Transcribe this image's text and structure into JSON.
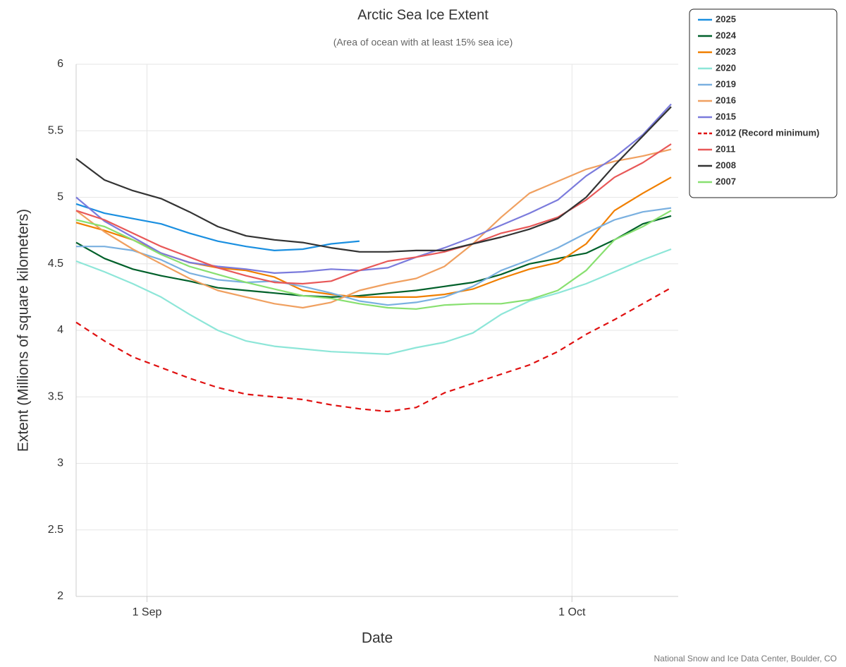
{
  "chart_data": {
    "type": "line",
    "title": "Arctic Sea Ice Extent",
    "subtitle": "(Area of ocean with at least 15% sea ice)",
    "x_label": "Date",
    "y_label": "Extent (Millions of square kilometers)",
    "credit": "National Snow and Ice Data Center, Boulder, CO",
    "x": [
      -5,
      -3,
      -1,
      1,
      3,
      5,
      7,
      9,
      11,
      13,
      15,
      17,
      19,
      21,
      23,
      25,
      27,
      29,
      31,
      33,
      35,
      37
    ],
    "xlim": [
      -5,
      37.5
    ],
    "xticks": [
      {
        "value": 0,
        "label": "1 Sep"
      },
      {
        "value": 30,
        "label": "1 Oct"
      }
    ],
    "ylim": [
      2,
      6
    ],
    "yticks": [
      2,
      2.5,
      3,
      3.5,
      4,
      4.5,
      5,
      5.5,
      6
    ],
    "grid": true,
    "legend": "right",
    "series": [
      {
        "name": "2025",
        "color": "#1a8fe0",
        "values": [
          4.95,
          4.88,
          4.84,
          4.8,
          4.73,
          4.67,
          4.63,
          4.6,
          4.61,
          4.65,
          4.67,
          null,
          null,
          null,
          null,
          null,
          null,
          null,
          null,
          null,
          null,
          null
        ]
      },
      {
        "name": "2024",
        "color": "#00602a",
        "values": [
          4.66,
          4.54,
          4.46,
          4.41,
          4.37,
          4.32,
          4.3,
          4.28,
          4.26,
          4.25,
          4.26,
          4.28,
          4.3,
          4.33,
          4.36,
          4.42,
          4.5,
          4.54,
          4.58,
          4.68,
          4.8,
          4.86
        ]
      },
      {
        "name": "2023",
        "color": "#f07f00",
        "values": [
          4.81,
          4.75,
          4.68,
          4.58,
          4.51,
          4.47,
          4.45,
          4.4,
          4.3,
          4.27,
          4.25,
          4.25,
          4.25,
          4.27,
          4.31,
          4.39,
          4.46,
          4.51,
          4.65,
          4.9,
          5.03,
          5.15
        ]
      },
      {
        "name": "2020",
        "color": "#8de6d8",
        "values": [
          4.52,
          4.44,
          4.35,
          4.25,
          4.12,
          4.0,
          3.92,
          3.88,
          3.86,
          3.84,
          3.83,
          3.82,
          3.87,
          3.91,
          3.98,
          4.12,
          4.22,
          4.28,
          4.35,
          4.44,
          4.53,
          4.61
        ]
      },
      {
        "name": "2019",
        "color": "#7ab0e0",
        "values": [
          4.63,
          4.63,
          4.6,
          4.53,
          4.43,
          4.38,
          4.36,
          4.37,
          4.33,
          4.28,
          4.22,
          4.19,
          4.21,
          4.25,
          4.33,
          4.45,
          4.53,
          4.62,
          4.73,
          4.83,
          4.89,
          4.92
        ]
      },
      {
        "name": "2016",
        "color": "#f0a060",
        "values": [
          4.9,
          4.74,
          4.61,
          4.5,
          4.39,
          4.3,
          4.25,
          4.2,
          4.17,
          4.21,
          4.3,
          4.35,
          4.39,
          4.48,
          4.65,
          4.85,
          5.03,
          5.12,
          5.21,
          5.27,
          5.31,
          5.36
        ]
      },
      {
        "name": "2015",
        "color": "#7b7bdc",
        "values": [
          5.0,
          4.82,
          4.7,
          4.58,
          4.51,
          4.48,
          4.46,
          4.43,
          4.44,
          4.46,
          4.45,
          4.47,
          4.55,
          4.62,
          4.7,
          4.79,
          4.88,
          4.98,
          5.16,
          5.3,
          5.47,
          5.7
        ]
      },
      {
        "name": "2012 (Record minimum)",
        "color": "#e01010",
        "dash": true,
        "values": [
          4.06,
          3.92,
          3.8,
          3.72,
          3.64,
          3.57,
          3.52,
          3.5,
          3.48,
          3.44,
          3.41,
          3.39,
          3.42,
          3.53,
          3.6,
          3.67,
          3.74,
          3.84,
          3.97,
          4.08,
          4.2,
          4.32
        ]
      },
      {
        "name": "2011",
        "color": "#e85858",
        "values": [
          4.9,
          4.83,
          4.73,
          4.63,
          4.55,
          4.47,
          4.41,
          4.36,
          4.35,
          4.37,
          4.45,
          4.52,
          4.55,
          4.59,
          4.65,
          4.73,
          4.78,
          4.85,
          4.98,
          5.15,
          5.26,
          5.4
        ]
      },
      {
        "name": "2008",
        "color": "#333333",
        "values": [
          5.29,
          5.13,
          5.05,
          4.99,
          4.89,
          4.78,
          4.71,
          4.68,
          4.66,
          4.62,
          4.59,
          4.59,
          4.6,
          4.6,
          4.65,
          4.7,
          4.76,
          4.84,
          5.0,
          5.24,
          5.46,
          5.68
        ]
      },
      {
        "name": "2007",
        "color": "#88e070",
        "values": [
          4.83,
          4.78,
          4.68,
          4.57,
          4.48,
          4.42,
          4.36,
          4.31,
          4.26,
          4.24,
          4.2,
          4.17,
          4.16,
          4.19,
          4.2,
          4.2,
          4.23,
          4.3,
          4.45,
          4.68,
          4.78,
          4.9
        ]
      }
    ]
  }
}
